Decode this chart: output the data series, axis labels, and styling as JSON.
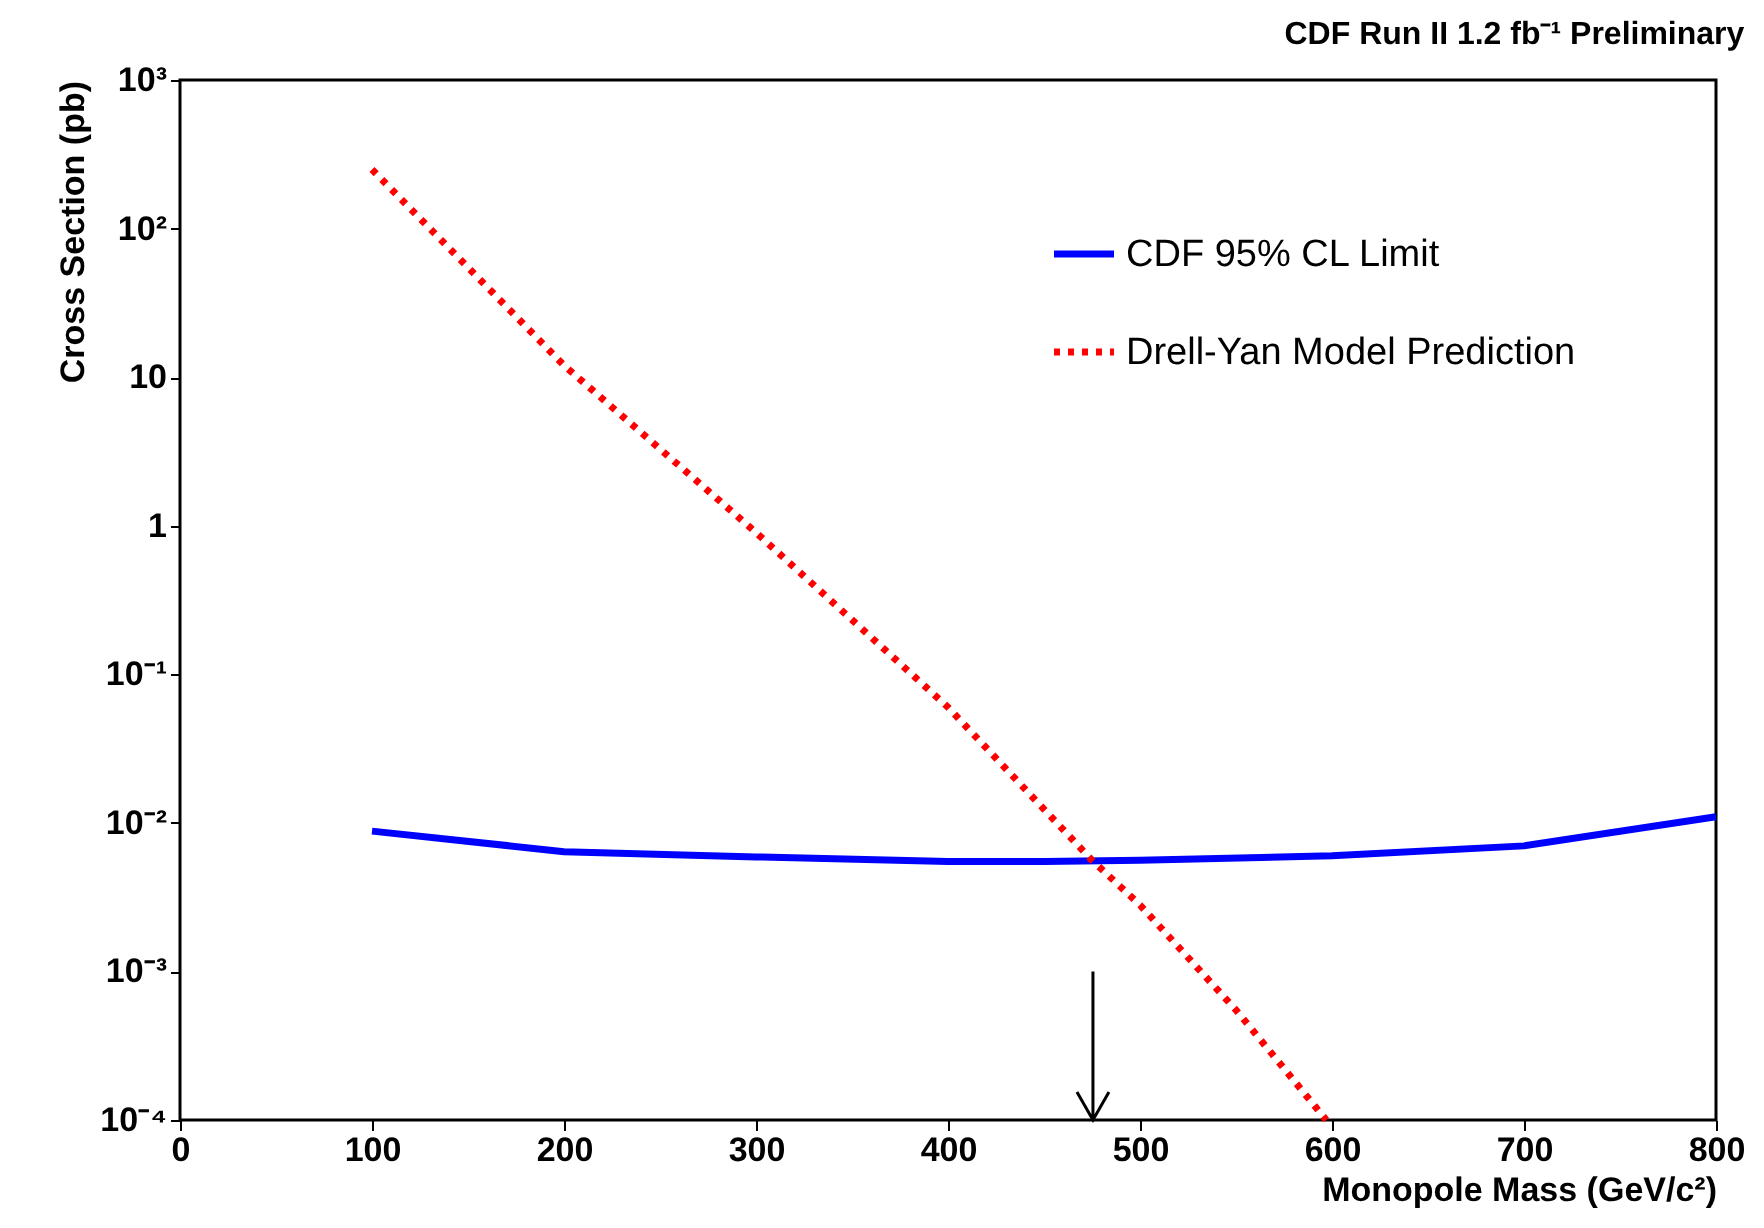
{
  "chart_data": {
    "type": "line",
    "title": "CDF Run II 1.2 fb⁻¹ Preliminary",
    "xlabel": "Monopole Mass (GeV/c²)",
    "ylabel": "Cross Section (pb)",
    "series": [
      {
        "name": "CDF 95% CL Limit",
        "color": "#0000ff",
        "line_style": "solid",
        "x": [
          100,
          200,
          300,
          400,
          450,
          500,
          600,
          700,
          800
        ],
        "values": [
          0.0088,
          0.0064,
          0.0059,
          0.0055,
          0.0055,
          0.0056,
          0.006,
          0.007,
          0.011
        ]
      },
      {
        "name": "Drell-Yan Model Prediction",
        "color": "#ff0000",
        "line_style": "dotted",
        "x": [
          100,
          200,
          300,
          400,
          475,
          500,
          550,
          597
        ],
        "values": [
          250,
          12,
          0.9,
          0.06,
          0.0056,
          0.0028,
          0.00055,
          0.0001
        ]
      }
    ],
    "xlim": [
      0,
      800
    ],
    "xticks": [
      0,
      100,
      200,
      300,
      400,
      500,
      600,
      700,
      800
    ],
    "ylim": [
      0.0001,
      1000
    ],
    "log": "y",
    "yticks": [
      {
        "value": 0.0001,
        "label": "10⁻⁴"
      },
      {
        "value": 0.001,
        "label": "10⁻³"
      },
      {
        "value": 0.01,
        "label": "10⁻²"
      },
      {
        "value": 0.1,
        "label": "10⁻¹"
      },
      1,
      10,
      {
        "value": 100,
        "label": "10²"
      },
      {
        "value": 1000,
        "label": "10³"
      }
    ],
    "grid": false,
    "legend": "top right",
    "marker": "none"
  }
}
